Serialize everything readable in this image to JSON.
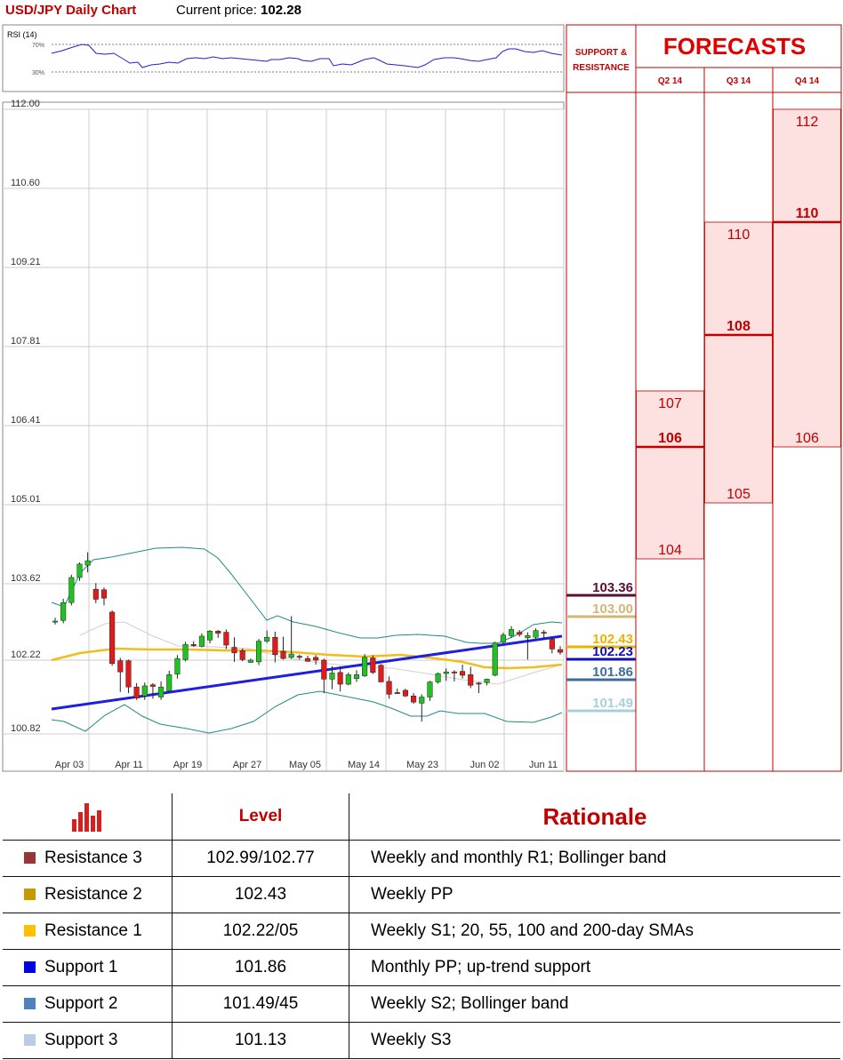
{
  "header": {
    "title": "USD/JPY Daily Chart",
    "price_label": "Current price: ",
    "price_value": "102.28"
  },
  "rsi": {
    "label": "RSI (14)",
    "levels": [
      "70%",
      "30%"
    ]
  },
  "chart_data": {
    "type": "candlestick",
    "y_ticks": [
      "112.00",
      "110.60",
      "109.21",
      "107.81",
      "106.41",
      "105.01",
      "103.62",
      "102.22",
      "100.82"
    ],
    "x_ticks": [
      "Apr 03",
      "Apr 11",
      "Apr 19",
      "Apr 27",
      "May 05",
      "May 14",
      "May 23",
      "Jun 02",
      "Jun 11"
    ],
    "ylim": [
      100.82,
      112.0
    ],
    "candles": [
      {
        "o": 102.83,
        "h": 102.9,
        "l": 102.78,
        "c": 102.84
      },
      {
        "o": 102.85,
        "h": 103.24,
        "l": 102.8,
        "c": 103.17
      },
      {
        "o": 103.17,
        "h": 103.67,
        "l": 103.12,
        "c": 103.62
      },
      {
        "o": 103.62,
        "h": 103.89,
        "l": 103.56,
        "c": 103.86
      },
      {
        "o": 103.84,
        "h": 104.07,
        "l": 103.71,
        "c": 103.92
      },
      {
        "o": 103.41,
        "h": 103.52,
        "l": 103.16,
        "c": 103.23
      },
      {
        "o": 103.4,
        "h": 103.44,
        "l": 103.12,
        "c": 103.25
      },
      {
        "o": 103.0,
        "h": 103.03,
        "l": 102.04,
        "c": 102.08
      },
      {
        "o": 102.13,
        "h": 102.18,
        "l": 101.57,
        "c": 101.93
      },
      {
        "o": 102.13,
        "h": 102.15,
        "l": 101.55,
        "c": 101.66
      },
      {
        "o": 101.66,
        "h": 101.73,
        "l": 101.43,
        "c": 101.46
      },
      {
        "o": 101.5,
        "h": 101.74,
        "l": 101.43,
        "c": 101.68
      },
      {
        "o": 101.7,
        "h": 101.73,
        "l": 101.45,
        "c": 101.67
      },
      {
        "o": 101.48,
        "h": 101.76,
        "l": 101.43,
        "c": 101.66
      },
      {
        "o": 101.59,
        "h": 101.95,
        "l": 101.56,
        "c": 101.88
      },
      {
        "o": 101.89,
        "h": 102.23,
        "l": 101.81,
        "c": 102.17
      },
      {
        "o": 102.15,
        "h": 102.47,
        "l": 102.12,
        "c": 102.42
      },
      {
        "o": 102.42,
        "h": 102.48,
        "l": 102.38,
        "c": 102.4
      },
      {
        "o": 102.39,
        "h": 102.62,
        "l": 102.37,
        "c": 102.57
      },
      {
        "o": 102.5,
        "h": 102.68,
        "l": 102.44,
        "c": 102.66
      },
      {
        "o": 102.66,
        "h": 102.68,
        "l": 102.54,
        "c": 102.62
      },
      {
        "o": 102.64,
        "h": 102.69,
        "l": 102.34,
        "c": 102.41
      },
      {
        "o": 102.37,
        "h": 102.55,
        "l": 102.11,
        "c": 102.27
      },
      {
        "o": 102.31,
        "h": 102.35,
        "l": 102.12,
        "c": 102.15
      },
      {
        "o": 102.1,
        "h": 102.17,
        "l": 102.09,
        "c": 102.14
      },
      {
        "o": 102.11,
        "h": 102.52,
        "l": 102.05,
        "c": 102.48
      },
      {
        "o": 102.48,
        "h": 102.67,
        "l": 102.45,
        "c": 102.55
      },
      {
        "o": 102.55,
        "h": 102.65,
        "l": 102.1,
        "c": 102.24
      },
      {
        "o": 102.3,
        "h": 102.56,
        "l": 102.15,
        "c": 102.17
      },
      {
        "o": 102.19,
        "h": 102.93,
        "l": 102.16,
        "c": 102.25
      },
      {
        "o": 102.21,
        "h": 102.24,
        "l": 102.15,
        "c": 102.19
      },
      {
        "o": 102.17,
        "h": 102.22,
        "l": 102.11,
        "c": 102.12
      },
      {
        "o": 102.19,
        "h": 102.23,
        "l": 102.06,
        "c": 102.14
      },
      {
        "o": 102.14,
        "h": 102.17,
        "l": 101.55,
        "c": 101.8
      },
      {
        "o": 101.8,
        "h": 102.03,
        "l": 101.62,
        "c": 101.91
      },
      {
        "o": 101.92,
        "h": 102.03,
        "l": 101.58,
        "c": 101.71
      },
      {
        "o": 101.71,
        "h": 101.92,
        "l": 101.69,
        "c": 101.88
      },
      {
        "o": 101.81,
        "h": 101.96,
        "l": 101.75,
        "c": 101.88
      },
      {
        "o": 101.86,
        "h": 102.25,
        "l": 101.84,
        "c": 102.19
      },
      {
        "o": 102.18,
        "h": 102.23,
        "l": 101.89,
        "c": 101.92
      },
      {
        "o": 102.05,
        "h": 102.07,
        "l": 101.75,
        "c": 101.75
      },
      {
        "o": 101.76,
        "h": 101.85,
        "l": 101.45,
        "c": 101.53
      },
      {
        "o": 101.56,
        "h": 101.63,
        "l": 101.54,
        "c": 101.55
      },
      {
        "o": 101.6,
        "h": 101.63,
        "l": 101.48,
        "c": 101.5
      },
      {
        "o": 101.5,
        "h": 101.55,
        "l": 101.36,
        "c": 101.39
      },
      {
        "o": 101.37,
        "h": 101.53,
        "l": 101.04,
        "c": 101.48
      },
      {
        "o": 101.48,
        "h": 101.77,
        "l": 101.41,
        "c": 101.75
      },
      {
        "o": 101.75,
        "h": 101.92,
        "l": 101.72,
        "c": 101.9
      },
      {
        "o": 101.9,
        "h": 101.99,
        "l": 101.77,
        "c": 101.93
      },
      {
        "o": 101.93,
        "h": 101.96,
        "l": 101.76,
        "c": 101.92
      },
      {
        "o": 101.94,
        "h": 102.06,
        "l": 101.81,
        "c": 101.87
      },
      {
        "o": 101.88,
        "h": 102.02,
        "l": 101.64,
        "c": 101.69
      },
      {
        "o": 101.73,
        "h": 101.75,
        "l": 101.55,
        "c": 101.72
      },
      {
        "o": 101.74,
        "h": 101.81,
        "l": 101.69,
        "c": 101.8
      },
      {
        "o": 101.87,
        "h": 102.47,
        "l": 101.85,
        "c": 102.45
      },
      {
        "o": 102.46,
        "h": 102.63,
        "l": 102.44,
        "c": 102.59
      },
      {
        "o": 102.58,
        "h": 102.75,
        "l": 102.54,
        "c": 102.69
      },
      {
        "o": 102.64,
        "h": 102.68,
        "l": 102.56,
        "c": 102.6
      },
      {
        "o": 102.54,
        "h": 102.64,
        "l": 102.15,
        "c": 102.58
      },
      {
        "o": 102.55,
        "h": 102.71,
        "l": 102.52,
        "c": 102.67
      },
      {
        "o": 102.64,
        "h": 102.68,
        "l": 102.51,
        "c": 102.62
      },
      {
        "o": 102.52,
        "h": 102.55,
        "l": 102.26,
        "c": 102.34
      },
      {
        "o": 102.33,
        "h": 102.39,
        "l": 102.24,
        "c": 102.28
      }
    ],
    "support_resistance_labels": [
      {
        "label": "103.36",
        "value": 103.36,
        "color": "#5a1030"
      },
      {
        "label": "103.00",
        "value": 103.0,
        "color": "#d4b574"
      },
      {
        "label": "102.43",
        "value": 102.43,
        "color": "#e8b400"
      },
      {
        "label": "102.23",
        "value": 102.23,
        "color": "#1010b0"
      },
      {
        "label": "101.86",
        "value": 101.86,
        "color": "#3b6e9e"
      },
      {
        "label": "101.49",
        "value": 101.49,
        "color": "#a8d0d8"
      }
    ]
  },
  "forecasts": {
    "title": "FORECASTS",
    "sr_header_line1": "SUPPORT &",
    "sr_header_line2": "RESISTANCE",
    "quarters": [
      {
        "label": "Q2 14",
        "high": "107",
        "mid": "106",
        "low": "104",
        "high_v": 107,
        "mid_v": 106,
        "low_v": 104
      },
      {
        "label": "Q3 14",
        "high": "110",
        "mid": "108",
        "low": "105",
        "high_v": 110,
        "mid_v": 108,
        "low_v": 105
      },
      {
        "label": "Q4 14",
        "high": "112",
        "mid": "110",
        "low": "106",
        "high_v": 112,
        "mid_v": 110,
        "low_v": 106
      }
    ]
  },
  "levels_table": {
    "header_level": "Level",
    "header_rationale": "Rationale",
    "rows": [
      {
        "name": "Resistance 3",
        "value": "102.99/102.77",
        "rationale": "Weekly and monthly R1; Bollinger band",
        "color": "#953735"
      },
      {
        "name": "Resistance 2",
        "value": "102.43",
        "rationale": "Weekly PP",
        "color": "#c49a00"
      },
      {
        "name": "Resistance 1",
        "value": "102.22/05",
        "rationale": "Weekly S1; 20, 55, 100 and 200-day SMAs",
        "color": "#ffc000"
      },
      {
        "name": "Support 1",
        "value": "101.86",
        "rationale": "Monthly PP; up-trend support",
        "color": "#0000e0"
      },
      {
        "name": "Support 2",
        "value": "101.49/45",
        "rationale": "Weekly S2; Bollinger band",
        "color": "#4f81bd"
      },
      {
        "name": "Support 3",
        "value": "101.13",
        "rationale": "Weekly S3",
        "color": "#b9cde5"
      }
    ]
  }
}
